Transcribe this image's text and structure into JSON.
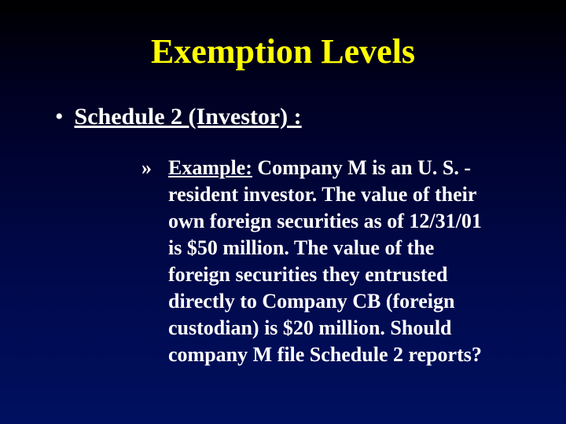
{
  "slide": {
    "background_gradient": [
      "#000000",
      "#000020",
      "#000848",
      "#001060"
    ],
    "title": {
      "text": "Exemption Levels",
      "color": "#ffff00",
      "fontsize": 44,
      "font_weight": "bold",
      "font_family": "Times New Roman"
    },
    "bullet": {
      "marker": "•",
      "text": "Schedule 2 (Investor) :",
      "color": "#ffffff",
      "fontsize": 30,
      "font_weight": "bold",
      "underline": true
    },
    "sub": {
      "marker": "»",
      "example_label": "Example:",
      "body": "  Company M is an U. S. -   resident investor.  The value of their              own foreign securities as of 12/31/01 is        $50 million.  The value of the foreign                 securities they entrusted directly to          Company CB (foreign custodian) is $20   million.  Should company M file     Schedule 2 reports?",
      "color": "#ffffff",
      "fontsize": 26,
      "font_weight": "bold",
      "example_underline": true
    }
  }
}
